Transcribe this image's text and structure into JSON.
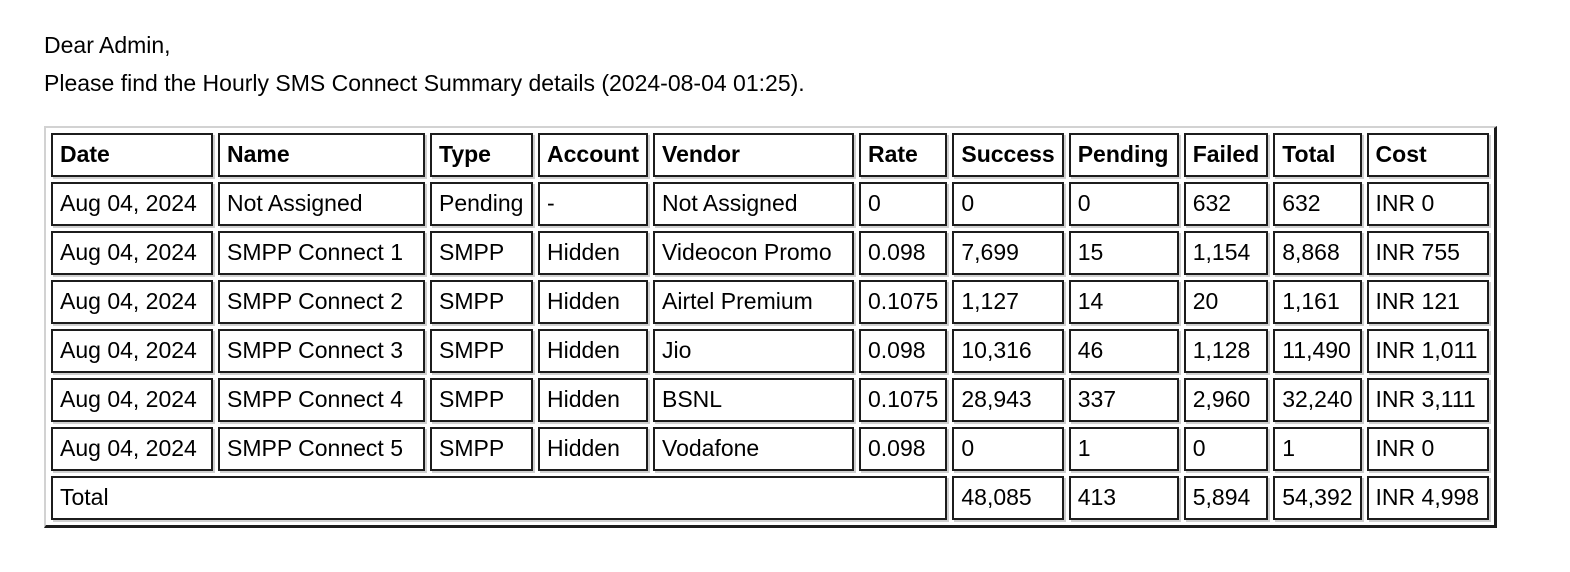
{
  "email": {
    "greeting": "Dear Admin,",
    "intro": "Please find the Hourly SMS Connect Summary details (2024-08-04 01:25)."
  },
  "table": {
    "columns": [
      "Date",
      "Name",
      "Type",
      "Account",
      "Vendor",
      "Rate",
      "Success",
      "Pending",
      "Failed",
      "Total",
      "Cost"
    ],
    "rows": [
      [
        "Aug 04, 2024",
        "Not Assigned",
        "Pending",
        "-",
        "Not Assigned",
        "0",
        "0",
        "0",
        "632",
        "632",
        "INR 0"
      ],
      [
        "Aug 04, 2024",
        "SMPP Connect 1",
        "SMPP",
        "Hidden",
        "Videocon Promo",
        "0.098",
        "7,699",
        "15",
        "1,154",
        "8,868",
        "INR 755"
      ],
      [
        "Aug 04, 2024",
        "SMPP Connect 2",
        "SMPP",
        "Hidden",
        "Airtel Premium",
        "0.1075",
        "1,127",
        "14",
        "20",
        "1,161",
        "INR 121"
      ],
      [
        "Aug 04, 2024",
        "SMPP Connect 3",
        "SMPP",
        "Hidden",
        "Jio",
        "0.098",
        "10,316",
        "46",
        "1,128",
        "11,490",
        "INR 1,011"
      ],
      [
        "Aug 04, 2024",
        "SMPP Connect 4",
        "SMPP",
        "Hidden",
        "BSNL",
        "0.1075",
        "28,943",
        "337",
        "2,960",
        "32,240",
        "INR 3,111"
      ],
      [
        "Aug 04, 2024",
        "SMPP Connect 5",
        "SMPP",
        "Hidden",
        "Vodafone",
        "0.098",
        "0",
        "1",
        "0",
        "1",
        "INR 0"
      ]
    ],
    "total_row": {
      "label": "Total",
      "values": [
        "48,085",
        "413",
        "5,894",
        "54,392",
        "INR 4,998"
      ]
    }
  },
  "colors": {
    "text": "#000000",
    "background": "#ffffff",
    "border_dark": "#1c1c1c",
    "border_light": "#cfcfcf"
  }
}
